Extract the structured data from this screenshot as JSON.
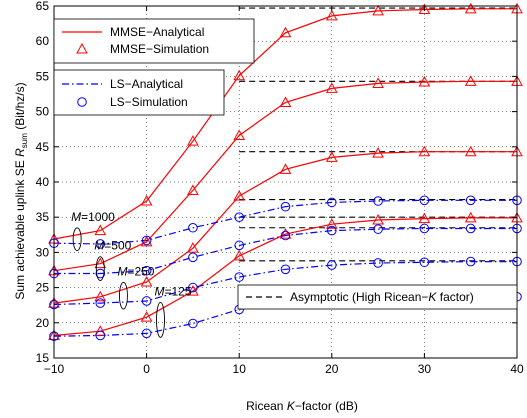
{
  "chart_data": {
    "type": "line",
    "title": "",
    "xlabel_parts": [
      "Ricean ",
      "K",
      "−factor (dB)"
    ],
    "ylabel_parts": [
      "Sum achievable uplink SE ",
      "R",
      "sum",
      " (Bit/hz/s)"
    ],
    "xlim": [
      -10,
      40
    ],
    "ylim": [
      15,
      65
    ],
    "xticks": [
      -10,
      0,
      10,
      20,
      30,
      40
    ],
    "xtick_labels": [
      "−10",
      "0",
      "10",
      "20",
      "30",
      "40"
    ],
    "yticks": [
      15,
      20,
      25,
      30,
      35,
      40,
      45,
      50,
      55,
      60,
      65
    ],
    "grid": true,
    "x_analytical": [
      -10,
      -5,
      0,
      5,
      10,
      15,
      20,
      25,
      30,
      35,
      40
    ],
    "x_simulation": [
      -10,
      -5,
      0,
      5,
      10,
      15,
      20,
      25,
      30,
      35,
      40
    ],
    "colors": {
      "mmse": "#ff0000",
      "ls": "#0000ff",
      "asymptotic": "#000000"
    },
    "series": [
      {
        "method": "MMSE",
        "M": "125",
        "analytical": [
          18.2,
          18.8,
          20.8,
          24.5,
          29.5,
          32.6,
          34.0,
          34.6,
          34.8,
          34.9,
          34.9
        ],
        "simulation": [
          18.2,
          18.8,
          20.8,
          24.5,
          29.5,
          32.6,
          34.0,
          34.6,
          34.8,
          34.9,
          34.9
        ],
        "asymptote": 35.0
      },
      {
        "method": "MMSE",
        "M": "250",
        "analytical": [
          22.8,
          23.7,
          25.8,
          30.6,
          38.0,
          41.8,
          43.5,
          44.1,
          44.3,
          44.3,
          44.3
        ],
        "simulation": [
          22.8,
          23.7,
          25.8,
          30.6,
          38.0,
          41.8,
          43.5,
          44.1,
          44.3,
          44.3,
          44.3
        ],
        "asymptote": 44.3
      },
      {
        "method": "MMSE",
        "M": "500",
        "analytical": [
          27.4,
          28.4,
          31.5,
          38.8,
          46.6,
          51.3,
          53.3,
          54.0,
          54.2,
          54.3,
          54.3
        ],
        "simulation": [
          27.4,
          28.4,
          31.5,
          38.8,
          46.6,
          51.3,
          53.3,
          54.0,
          54.2,
          54.3,
          54.3
        ],
        "asymptote": 54.3
      },
      {
        "method": "MMSE",
        "M": "1000",
        "analytical": [
          31.9,
          33.1,
          37.3,
          45.8,
          55.1,
          61.2,
          63.6,
          64.3,
          64.5,
          64.6,
          64.6
        ],
        "simulation": [
          31.9,
          33.1,
          37.3,
          45.8,
          55.1,
          61.2,
          63.6,
          64.3,
          64.5,
          64.6,
          64.6
        ],
        "asymptote": 64.7
      },
      {
        "method": "LS",
        "M": "125",
        "analytical": [
          18.1,
          18.2,
          18.5,
          19.9,
          21.9,
          22.9,
          23.4,
          23.6,
          23.7,
          23.7,
          23.7
        ],
        "simulation": [
          18.1,
          18.2,
          18.5,
          19.9,
          21.9,
          22.9,
          23.4,
          23.6,
          23.7,
          23.7,
          23.7
        ],
        "asymptote": 23.8
      },
      {
        "method": "LS",
        "M": "250",
        "analytical": [
          22.6,
          22.8,
          23.1,
          25.0,
          26.5,
          27.6,
          28.2,
          28.5,
          28.6,
          28.7,
          28.7
        ],
        "simulation": [
          22.6,
          22.8,
          23.1,
          25.0,
          26.5,
          27.6,
          28.2,
          28.5,
          28.6,
          28.7,
          28.7
        ],
        "asymptote": 28.8
      },
      {
        "method": "LS",
        "M": "500",
        "analytical": [
          27.0,
          27.0,
          27.4,
          29.3,
          31.0,
          32.4,
          33.1,
          33.3,
          33.4,
          33.4,
          33.4
        ],
        "simulation": [
          27.0,
          27.0,
          27.4,
          29.3,
          31.0,
          32.4,
          33.1,
          33.3,
          33.4,
          33.4,
          33.4
        ],
        "asymptote": 33.5
      },
      {
        "method": "LS",
        "M": "1000",
        "analytical": [
          31.3,
          31.2,
          31.7,
          33.5,
          35.0,
          36.5,
          37.1,
          37.3,
          37.4,
          37.4,
          37.4
        ],
        "simulation": [
          31.3,
          31.2,
          31.7,
          33.5,
          35.0,
          36.5,
          37.1,
          37.3,
          37.4,
          37.4,
          37.4
        ],
        "asymptote": 37.5
      }
    ],
    "group_labels": [
      {
        "M": "1000",
        "text": "=1000"
      },
      {
        "M": "500",
        "text": "=500"
      },
      {
        "M": "250",
        "text": "=250"
      },
      {
        "M": "125",
        "text": "=125"
      }
    ],
    "group_label_var": "M",
    "legend_mmse": [
      "MMSE−Analytical",
      "MMSE−Simulation"
    ],
    "legend_ls": [
      "LS−Analytical",
      "LS−Simulation"
    ],
    "legend_asym_parts": [
      "Asymptotic (High Ricean−",
      "K",
      " factor)"
    ],
    "legend_placement": "top-left, middle-left, bottom-right"
  }
}
